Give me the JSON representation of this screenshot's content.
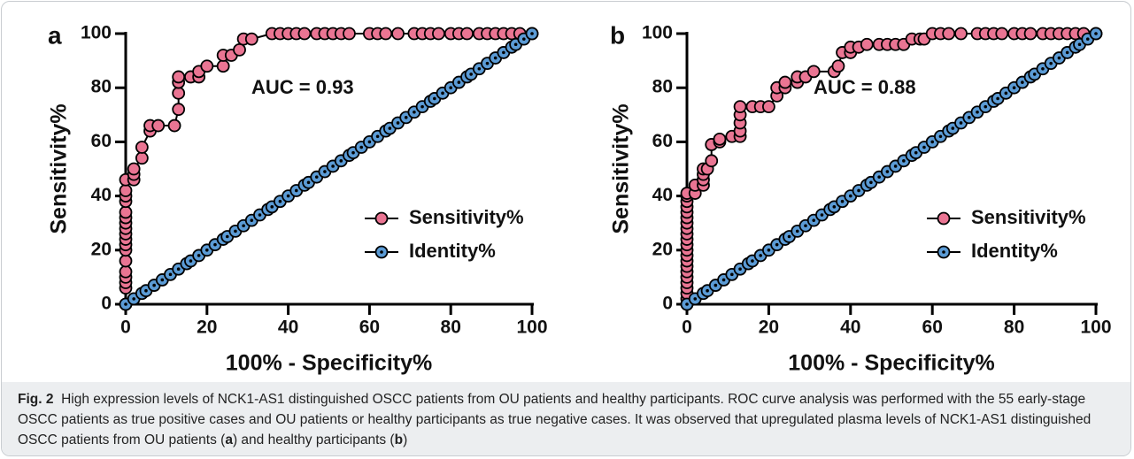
{
  "chart_data": [
    {
      "type": "line",
      "label": "a",
      "annotation": "AUC = 0.93",
      "xlabel": "100% - Specificity%",
      "ylabel": "Sensitivity%",
      "xlim": [
        0,
        100
      ],
      "ylim": [
        0,
        100
      ],
      "xticks": [
        0,
        20,
        40,
        60,
        80,
        100
      ],
      "yticks": [
        0,
        20,
        40,
        60,
        80,
        100
      ],
      "legend": "lower right",
      "series": [
        {
          "name": "Sensitivity%",
          "color": "#ea7593",
          "x": [
            0,
            0,
            0,
            0,
            0,
            0,
            0,
            0,
            0,
            0,
            0,
            0,
            0,
            0,
            0,
            0,
            0,
            0,
            2,
            2,
            2,
            4,
            4,
            6,
            6,
            8,
            12,
            13,
            13,
            13,
            13,
            16,
            18,
            18,
            20,
            24,
            24,
            26,
            28,
            29,
            31,
            36,
            38,
            40,
            42,
            44,
            47,
            49,
            51,
            53,
            55,
            60,
            62,
            64,
            67,
            71,
            73,
            75,
            77,
            80,
            82,
            84,
            87,
            89,
            91,
            93,
            95,
            97,
            100
          ],
          "values": [
            0,
            6,
            8,
            10,
            12,
            16,
            20,
            22,
            24,
            26,
            28,
            30,
            32,
            34,
            38,
            40,
            42,
            46,
            46,
            48,
            50,
            54,
            58,
            64,
            66,
            66,
            66,
            72,
            78,
            82,
            84,
            84,
            84,
            86,
            88,
            88,
            92,
            92,
            94,
            98,
            98,
            100,
            100,
            100,
            100,
            100,
            100,
            100,
            100,
            100,
            100,
            100,
            100,
            100,
            100,
            100,
            100,
            100,
            100,
            100,
            100,
            100,
            100,
            100,
            100,
            100,
            100,
            100,
            100
          ]
        },
        {
          "name": "Identity%",
          "color": "#5b9bd5",
          "x": [
            0,
            2,
            4,
            5,
            7,
            9,
            11,
            13,
            15,
            16,
            18,
            20,
            22,
            24,
            25,
            27,
            29,
            31,
            33,
            35,
            36,
            38,
            40,
            42,
            44,
            45,
            47,
            49,
            51,
            53,
            55,
            56,
            58,
            60,
            62,
            64,
            65,
            67,
            69,
            71,
            73,
            75,
            76,
            78,
            80,
            82,
            84,
            85,
            87,
            89,
            91,
            93,
            95,
            96,
            98,
            100
          ],
          "values": [
            0,
            2,
            4,
            5,
            7,
            9,
            11,
            13,
            15,
            16,
            18,
            20,
            22,
            24,
            25,
            27,
            29,
            31,
            33,
            35,
            36,
            38,
            40,
            42,
            44,
            45,
            47,
            49,
            51,
            53,
            55,
            56,
            58,
            60,
            62,
            64,
            65,
            67,
            69,
            71,
            73,
            75,
            76,
            78,
            80,
            82,
            84,
            85,
            87,
            89,
            91,
            93,
            95,
            96,
            98,
            100
          ]
        }
      ]
    },
    {
      "type": "line",
      "label": "b",
      "annotation": "AUC = 0.88",
      "xlabel": "100% - Specificity%",
      "ylabel": "Sensitivity%",
      "xlim": [
        0,
        100
      ],
      "ylim": [
        0,
        100
      ],
      "xticks": [
        0,
        20,
        40,
        60,
        80,
        100
      ],
      "yticks": [
        0,
        20,
        40,
        60,
        80,
        100
      ],
      "legend": "lower right",
      "series": [
        {
          "name": "Sensitivity%",
          "color": "#ea7593",
          "x": [
            0,
            0,
            0,
            0,
            0,
            0,
            0,
            0,
            0,
            0,
            0,
            0,
            0,
            0,
            0,
            0,
            0,
            0,
            0,
            0,
            0,
            0,
            2,
            2,
            4,
            4,
            4,
            4,
            5,
            6,
            6,
            8,
            8,
            11,
            13,
            13,
            13,
            13,
            13,
            16,
            18,
            20,
            22,
            22,
            24,
            24,
            27,
            27,
            29,
            31,
            36,
            37,
            38,
            40,
            40,
            42,
            44,
            47,
            49,
            51,
            53,
            55,
            57,
            58,
            60,
            62,
            64,
            67,
            71,
            73,
            75,
            77,
            80,
            82,
            84,
            87,
            89,
            91,
            93,
            95,
            97,
            100
          ],
          "values": [
            0,
            2,
            4,
            6,
            8,
            10,
            12,
            14,
            16,
            18,
            20,
            22,
            24,
            26,
            28,
            30,
            32,
            34,
            36,
            38,
            40,
            41,
            41,
            44,
            44,
            46,
            48,
            50,
            50,
            53,
            59,
            60,
            61,
            62,
            62,
            64,
            67,
            70,
            73,
            73,
            73,
            73,
            77,
            80,
            80,
            82,
            82,
            84,
            84,
            86,
            86,
            88,
            93,
            93,
            95,
            95,
            96,
            96,
            96,
            96,
            96,
            98,
            98,
            98,
            100,
            100,
            100,
            100,
            100,
            100,
            100,
            100,
            100,
            100,
            100,
            100,
            100,
            100,
            100,
            100,
            100,
            100
          ]
        },
        {
          "name": "Identity%",
          "color": "#5b9bd5",
          "x": [
            0,
            2,
            4,
            5,
            7,
            9,
            11,
            13,
            15,
            16,
            18,
            20,
            22,
            24,
            25,
            27,
            29,
            31,
            33,
            35,
            36,
            38,
            40,
            42,
            44,
            45,
            47,
            49,
            51,
            53,
            55,
            56,
            58,
            60,
            62,
            64,
            65,
            67,
            69,
            71,
            73,
            75,
            76,
            78,
            80,
            82,
            84,
            85,
            87,
            89,
            91,
            93,
            95,
            96,
            98,
            100
          ],
          "values": [
            0,
            2,
            4,
            5,
            7,
            9,
            11,
            13,
            15,
            16,
            18,
            20,
            22,
            24,
            25,
            27,
            29,
            31,
            33,
            35,
            36,
            38,
            40,
            42,
            44,
            45,
            47,
            49,
            51,
            53,
            55,
            56,
            58,
            60,
            62,
            64,
            65,
            67,
            69,
            71,
            73,
            75,
            76,
            78,
            80,
            82,
            84,
            85,
            87,
            89,
            91,
            93,
            95,
            96,
            98,
            100
          ]
        }
      ]
    }
  ],
  "caption": {
    "label": "Fig. 2",
    "parts": [
      "High expression levels of NCK1-AS1 distinguished OSCC patients from OU patients and healthy participants. ROC curve analysis was performed with the 55 early-stage OSCC patients as true positive cases and OU patients or healthy participants as true negative cases. It was observed that upregulated plasma levels of NCK1-AS1 distinguished OSCC patients from OU patients (",
      "a",
      ") and healthy participants (",
      "b",
      ")"
    ]
  }
}
